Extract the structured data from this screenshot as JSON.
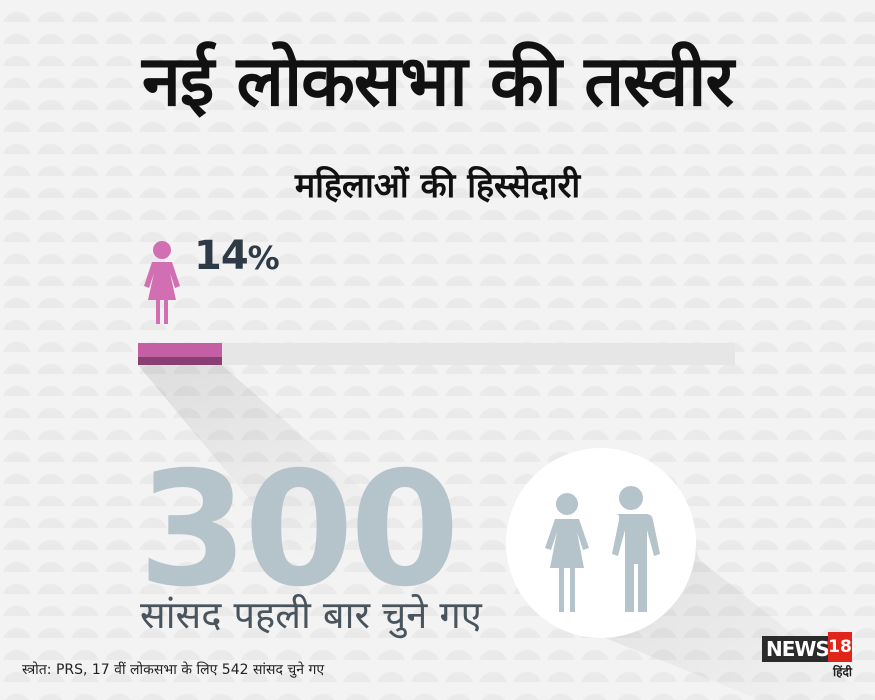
{
  "title": "नई लोकसभा की तस्वीर",
  "subtitle": "महिलाओं की हिस्सेदारी",
  "women_share": {
    "value_number": "14",
    "value_unit": "%",
    "fraction": 0.14,
    "fill_color": "#c45fa4",
    "track_color": "#e6e6e6"
  },
  "first_time_mps": {
    "count": "300",
    "caption": "सांसद पहली बार चुने गए"
  },
  "icons": {
    "woman": "woman-icon",
    "couple": "man-woman-icon"
  },
  "source_note": "स्त्रोत: PRS, 17 वीं लोकसभा के लिए 542 सांसद चुने गए",
  "logo": {
    "name": "NEWS",
    "number": "18",
    "language": "हिंदी"
  }
}
